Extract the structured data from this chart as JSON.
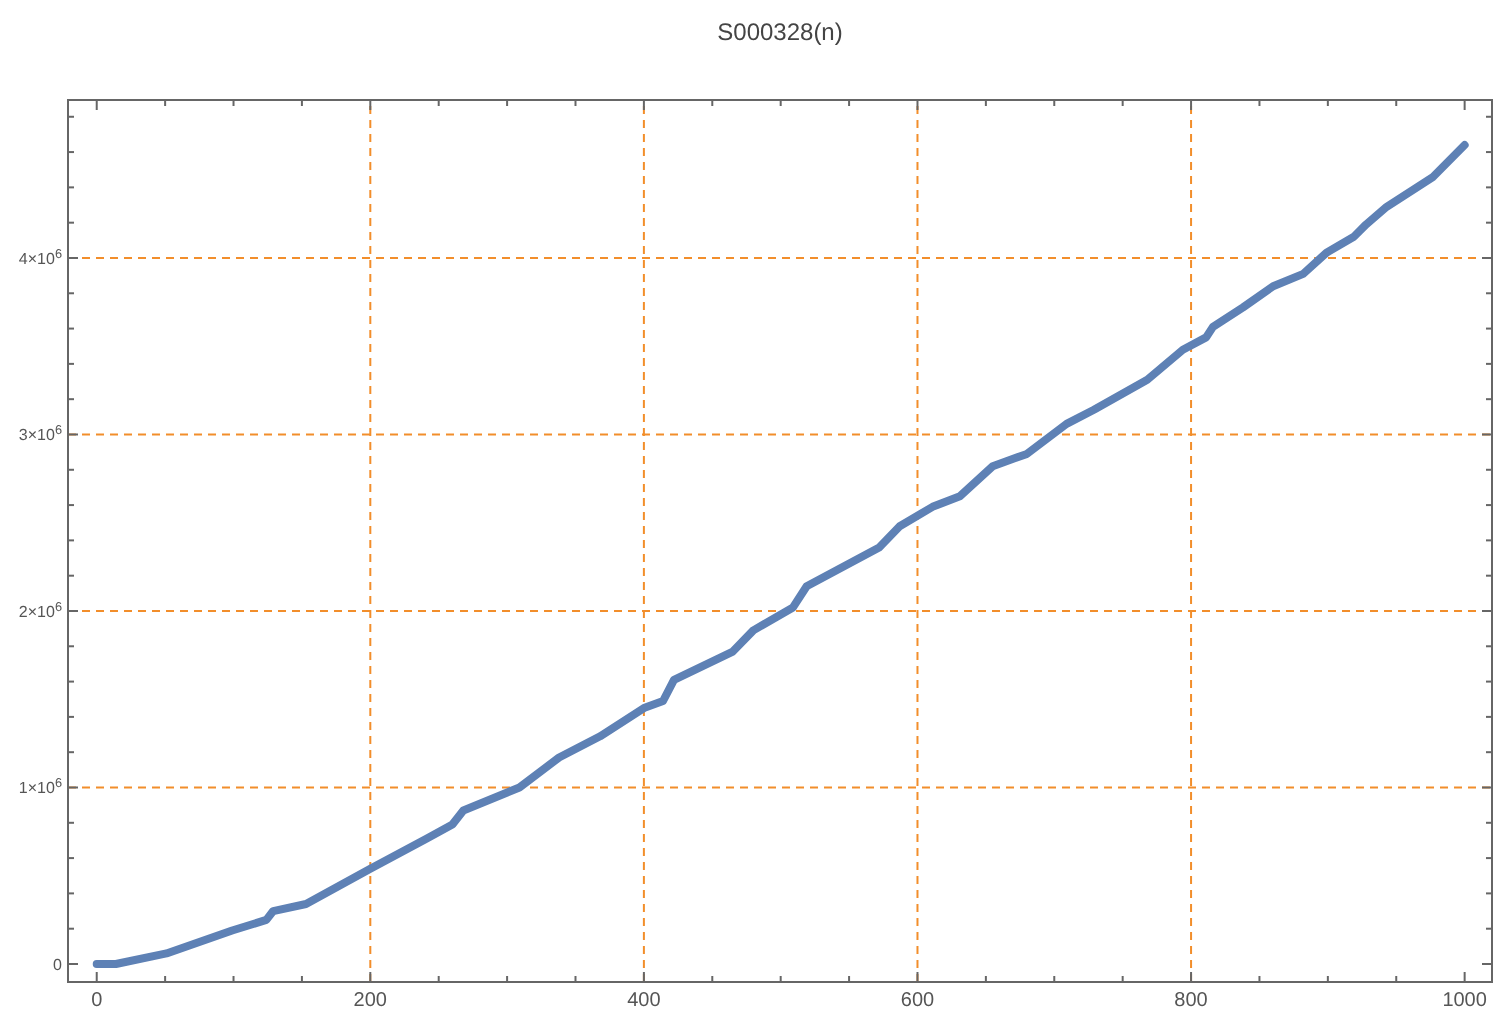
{
  "chart_data": {
    "type": "line",
    "title": "S000328(n)",
    "x": [
      0,
      14,
      51,
      99,
      124,
      129,
      153,
      200,
      241,
      260,
      268,
      309,
      338,
      368,
      400,
      414,
      422,
      465,
      480,
      509,
      519,
      572,
      587,
      611,
      631,
      655,
      680,
      709,
      729,
      768,
      794,
      811,
      816,
      838,
      860,
      882,
      899,
      919,
      928,
      943,
      977,
      1000
    ],
    "series": [
      {
        "color": "#5e81b5",
        "values": [
          0,
          0,
          60000,
          190000,
          250000,
          300000,
          340000,
          540000,
          710000,
          790000,
          870000,
          1000000,
          1170000,
          1290000,
          1450000,
          1490000,
          1610000,
          1770000,
          1890000,
          2020000,
          2140000,
          2360000,
          2480000,
          2590000,
          2650000,
          2820000,
          2890000,
          3060000,
          3140000,
          3310000,
          3480000,
          3550000,
          3610000,
          3720000,
          3840000,
          3910000,
          4030000,
          4120000,
          4190000,
          4290000,
          4460000,
          4640000
        ]
      }
    ],
    "xlim": [
      -21,
      1020
    ],
    "ylim": [
      -102000,
      4895000
    ],
    "xticks": [
      0,
      {
        "value": 50,
        "label": null
      },
      {
        "value": 100,
        "label": null
      },
      {
        "value": 150,
        "label": null
      },
      200,
      {
        "value": 250,
        "label": null
      },
      {
        "value": 300,
        "label": null
      },
      {
        "value": 350,
        "label": null
      },
      400,
      {
        "value": 450,
        "label": null
      },
      {
        "value": 500,
        "label": null
      },
      {
        "value": 550,
        "label": null
      },
      600,
      {
        "value": 650,
        "label": null
      },
      {
        "value": 700,
        "label": null
      },
      {
        "value": 750,
        "label": null
      },
      800,
      {
        "value": 850,
        "label": null
      },
      {
        "value": 900,
        "label": null
      },
      {
        "value": 950,
        "label": null
      },
      1000
    ],
    "yticks": [
      0,
      {
        "value": 200000,
        "label": null
      },
      {
        "value": 400000,
        "label": null
      },
      {
        "value": 600000,
        "label": null
      },
      {
        "value": 800000,
        "label": null
      },
      {
        "value": 1000000,
        "label": "1×10$^{6}$"
      },
      {
        "value": 1200000,
        "label": null
      },
      {
        "value": 1400000,
        "label": null
      },
      {
        "value": 1600000,
        "label": null
      },
      {
        "value": 1800000,
        "label": null
      },
      {
        "value": 2000000,
        "label": "2×10$^{6}$"
      },
      {
        "value": 2200000,
        "label": null
      },
      {
        "value": 2400000,
        "label": null
      },
      {
        "value": 2600000,
        "label": null
      },
      {
        "value": 2800000,
        "label": null
      },
      {
        "value": 3000000,
        "label": "3×10$^{6}$"
      },
      {
        "value": 3200000,
        "label": null
      },
      {
        "value": 3400000,
        "label": null
      },
      {
        "value": 3600000,
        "label": null
      },
      {
        "value": 3800000,
        "label": null
      },
      {
        "value": 4000000,
        "label": "4×10$^{6}$"
      },
      {
        "value": 4200000,
        "label": null
      },
      {
        "value": 4400000,
        "label": null
      },
      {
        "value": 4600000,
        "label": null
      },
      {
        "value": 4800000,
        "label": null
      }
    ],
    "grid": true,
    "marker": "none",
    "line_style": "solid"
  }
}
